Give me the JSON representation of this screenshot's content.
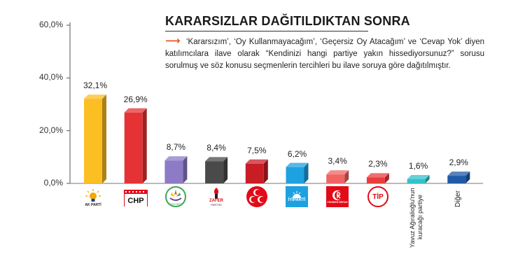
{
  "colors": {
    "akp": "#fbbf24",
    "chp": "#e53335",
    "dem": "#8e7bc7",
    "zafer": "#4a4a4a",
    "mhp": "#c81d25",
    "iyi": "#1ea1e0",
    "yrp": "#f06464",
    "tip": "#ea3d3d",
    "yavuz": "#33c2cc",
    "diger": "#1e5aa8",
    "note_arrow": "#e8542a"
  },
  "header": {
    "title": "KARARSIZLAR DAĞITILDIKTAN SONRA",
    "note_arrow": "⟶",
    "note": "‘Kararsızım’, ‘Oy Kullanmayacağım’, ‘Geçersiz Oy Atacağım’ ve ‘Cevap Yok’ diyen katılımcılara ilave olarak “Kendinizi hangi partiye yakın hissediyorsunuz?” sorusu sorulmuş ve söz konusu seçmenlerin tercihleri bu ilave soruya göre dağıtılmıştır."
  },
  "logos": {
    "akp": "AK PARTİ",
    "chp": "CHP",
    "dem": "DEM PARTİ",
    "zafer": "ZAFER",
    "zafer_sub": "PARTİSİ",
    "iyi": "İYİPARTİ",
    "yrp": "YENİDEN REFAH",
    "tip": "TİP"
  },
  "chart_data": {
    "type": "bar",
    "title": "KARARSIZLAR DAĞITILDIKTAN SONRA",
    "xlabel": "",
    "ylabel": "",
    "ylim": [
      0,
      60
    ],
    "yticks": [
      0,
      20,
      40,
      60
    ],
    "ytick_labels": [
      "0,0%",
      "20,0%",
      "40,0%",
      "60,0%"
    ],
    "grid": false,
    "categories": [
      "akp",
      "chp",
      "dem",
      "zafer",
      "mhp",
      "iyi",
      "yrp",
      "tip",
      "yavuz",
      "diger"
    ],
    "category_text": {
      "yavuz_line1": "Yavuz Ağıralioğlu'nun",
      "yavuz_line2": "kuracağı partiye",
      "diger": "Diğer"
    },
    "values": [
      32.1,
      26.9,
      8.7,
      8.4,
      7.5,
      6.2,
      3.4,
      2.3,
      1.6,
      2.9
    ],
    "value_labels": [
      "32,1%",
      "26,9%",
      "8,7%",
      "8,4%",
      "7,5%",
      "6,2%",
      "3,4%",
      "2,3%",
      "1,6%",
      "2,9%"
    ]
  }
}
